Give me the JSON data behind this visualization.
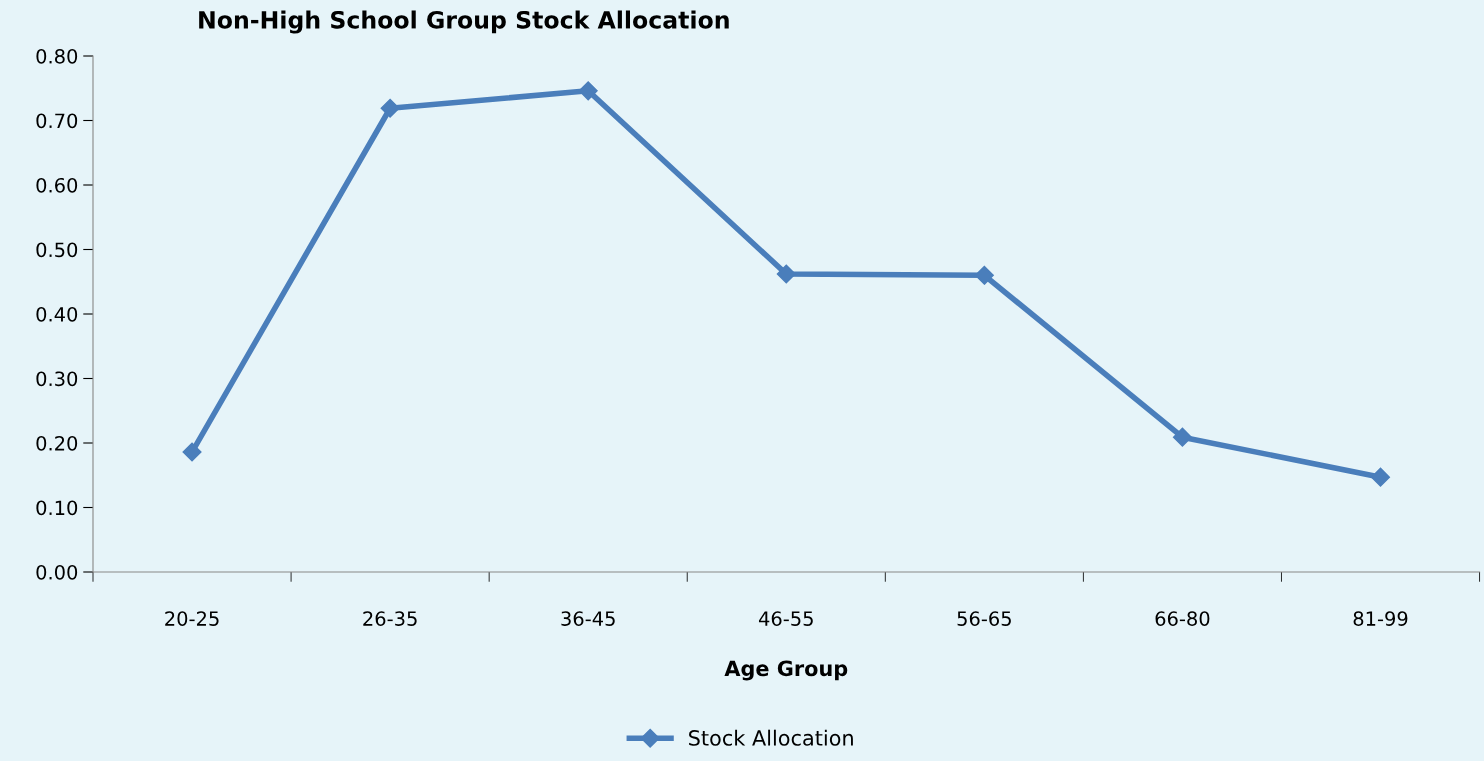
{
  "chart_data": {
    "type": "line",
    "title": "Non-High School Group Stock Allocation",
    "xlabel": "Age Group",
    "categories": [
      "20-25",
      "26-35",
      "36-45",
      "46-55",
      "56-65",
      "66-80",
      "81-99"
    ],
    "series": [
      {
        "name": "Stock Allocation",
        "color": "#4a7ebb",
        "values": [
          0.186,
          0.719,
          0.746,
          0.462,
          0.46,
          0.209,
          0.147
        ]
      }
    ],
    "ylim": [
      0,
      0.8
    ],
    "yticks": [
      {
        "value": 0,
        "label": "0.00"
      },
      {
        "value": 0.1,
        "label": "0.10"
      },
      {
        "value": 0.2,
        "label": "0.20"
      },
      {
        "value": 0.3,
        "label": "0.30"
      },
      {
        "value": 0.4,
        "label": "0.40"
      },
      {
        "value": 0.5,
        "label": "0.50"
      },
      {
        "value": 0.6,
        "label": "0.60"
      },
      {
        "value": 0.7,
        "label": "0.70"
      },
      {
        "value": 0.8,
        "label": "0.80"
      }
    ],
    "grid": false,
    "legend": "bottom",
    "marker": "diamond",
    "line_style": "solid"
  }
}
